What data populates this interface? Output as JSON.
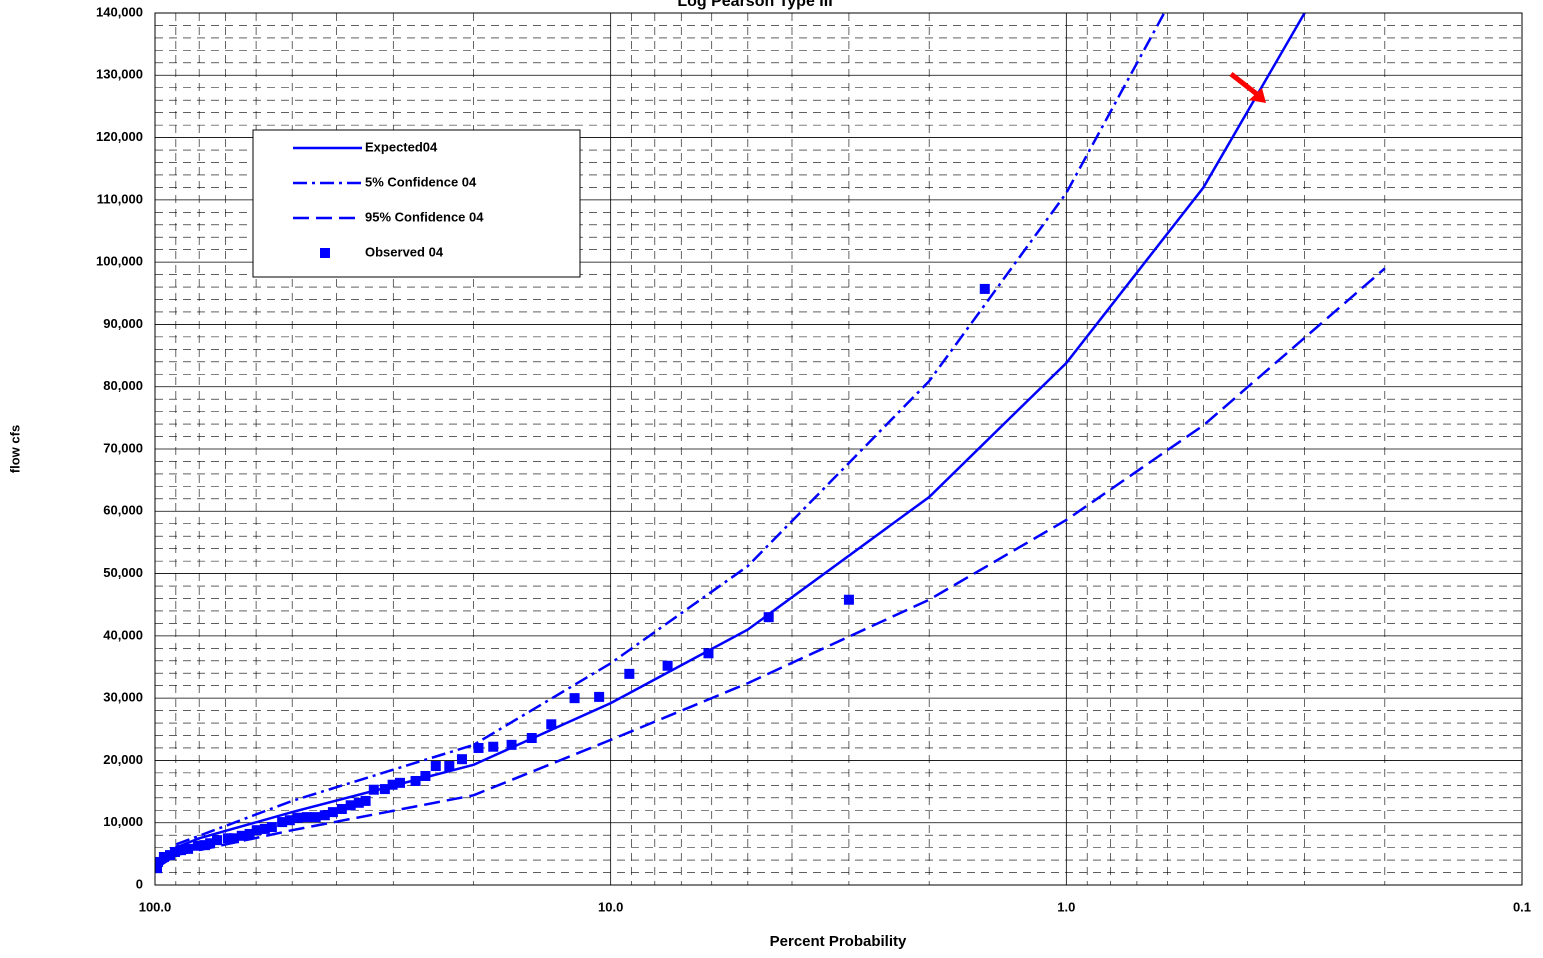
{
  "chart_data": {
    "type": "line",
    "title": "Log Pearson Type III",
    "x_label": "Percent Probability",
    "y_label": "flow cfs",
    "xscale": "log",
    "xlim": [
      100,
      0.1
    ],
    "xticks": [
      {
        "value": 100,
        "label": "100.0"
      },
      {
        "value": 10,
        "label": "10.0"
      },
      {
        "value": 1,
        "label": "1.0"
      },
      {
        "value": 0.1,
        "label": "0.1"
      }
    ],
    "ylim": [
      0,
      140000
    ],
    "yticks": [
      0,
      {
        "value": 10000,
        "label": "10,000"
      },
      {
        "value": 20000,
        "label": "20,000"
      },
      {
        "value": 30000,
        "label": "30,000"
      },
      {
        "value": 40000,
        "label": "40,000"
      },
      {
        "value": 50000,
        "label": "50,000"
      },
      {
        "value": 60000,
        "label": "60,000"
      },
      {
        "value": 70000,
        "label": "70,000"
      },
      {
        "value": 80000,
        "label": "80,000"
      },
      {
        "value": 90000,
        "label": "90,000"
      },
      {
        "value": 100000,
        "label": "100,000"
      },
      {
        "value": 110000,
        "label": "110,000"
      },
      {
        "value": 120000,
        "label": "120,000"
      },
      {
        "value": 130000,
        "label": "130,000"
      },
      {
        "value": 140000,
        "label": "140,000"
      }
    ],
    "grid": true,
    "minor_grid": true,
    "series": [
      {
        "name": "Expected04",
        "color": "#0000ff",
        "style": "solid",
        "x": [
          99,
          95,
          90,
          80,
          50,
          20,
          10,
          5,
          2,
          1,
          0.5,
          0.3
        ],
        "values": [
          3200,
          4800,
          6000,
          7500,
          11700,
          19300,
          29200,
          41000,
          62300,
          83800,
          112000,
          140000
        ]
      },
      {
        "name": "5% Confidence 04",
        "color": "#0000ff",
        "style": "dashdot",
        "x": [
          99,
          90,
          50,
          20,
          10,
          5,
          2,
          1,
          0.61
        ],
        "values": [
          3500,
          6500,
          13500,
          22500,
          35600,
          51200,
          80900,
          111100,
          140000
        ]
      },
      {
        "name": "95% Confidence 04",
        "color": "#0000ff",
        "style": "dashed",
        "x": [
          99,
          90,
          50,
          20,
          10,
          5,
          2,
          1,
          0.5,
          0.2
        ],
        "values": [
          2800,
          4800,
          8800,
          14400,
          23300,
          32400,
          45800,
          58600,
          73800,
          99000
        ]
      },
      {
        "name": "Observed 04",
        "color": "#0000ff",
        "style": "markers",
        "x": [
          99.0,
          98.5,
          95.6,
          92.7,
          90.4,
          87.7,
          84.6,
          80.5,
          77.7,
          75.7,
          73.1,
          69.2,
          67.1,
          64.5,
          62.0,
          59.8,
          57.4,
          55.4,
          52.6,
          50.6,
          48.6,
          46.4,
          44.4,
          42.4,
          40.7,
          38.9,
          37.2,
          35.7,
          34.5,
          33.1,
          31.3,
          30.1,
          29.0,
          26.8,
          25.5,
          24.2,
          22.6,
          21.2,
          19.5,
          18.1,
          16.5,
          14.9,
          13.5,
          12.0,
          10.6,
          9.1,
          7.5,
          6.1,
          4.5,
          3.0,
          1.51
        ],
        "values": [
          2700,
          3700,
          4500,
          4800,
          5300,
          5600,
          5800,
          6300,
          6400,
          6700,
          7200,
          7500,
          7500,
          7900,
          8200,
          8800,
          9000,
          9300,
          10100,
          10400,
          10800,
          10900,
          10900,
          11200,
          11700,
          12200,
          12800,
          13200,
          13500,
          15300,
          15400,
          16100,
          16400,
          16700,
          17500,
          19100,
          19100,
          20200,
          22000,
          22200,
          22500,
          23600,
          25800,
          30000,
          30200,
          33900,
          35200,
          37200,
          43000,
          45800,
          95700
        ]
      }
    ]
  }
}
